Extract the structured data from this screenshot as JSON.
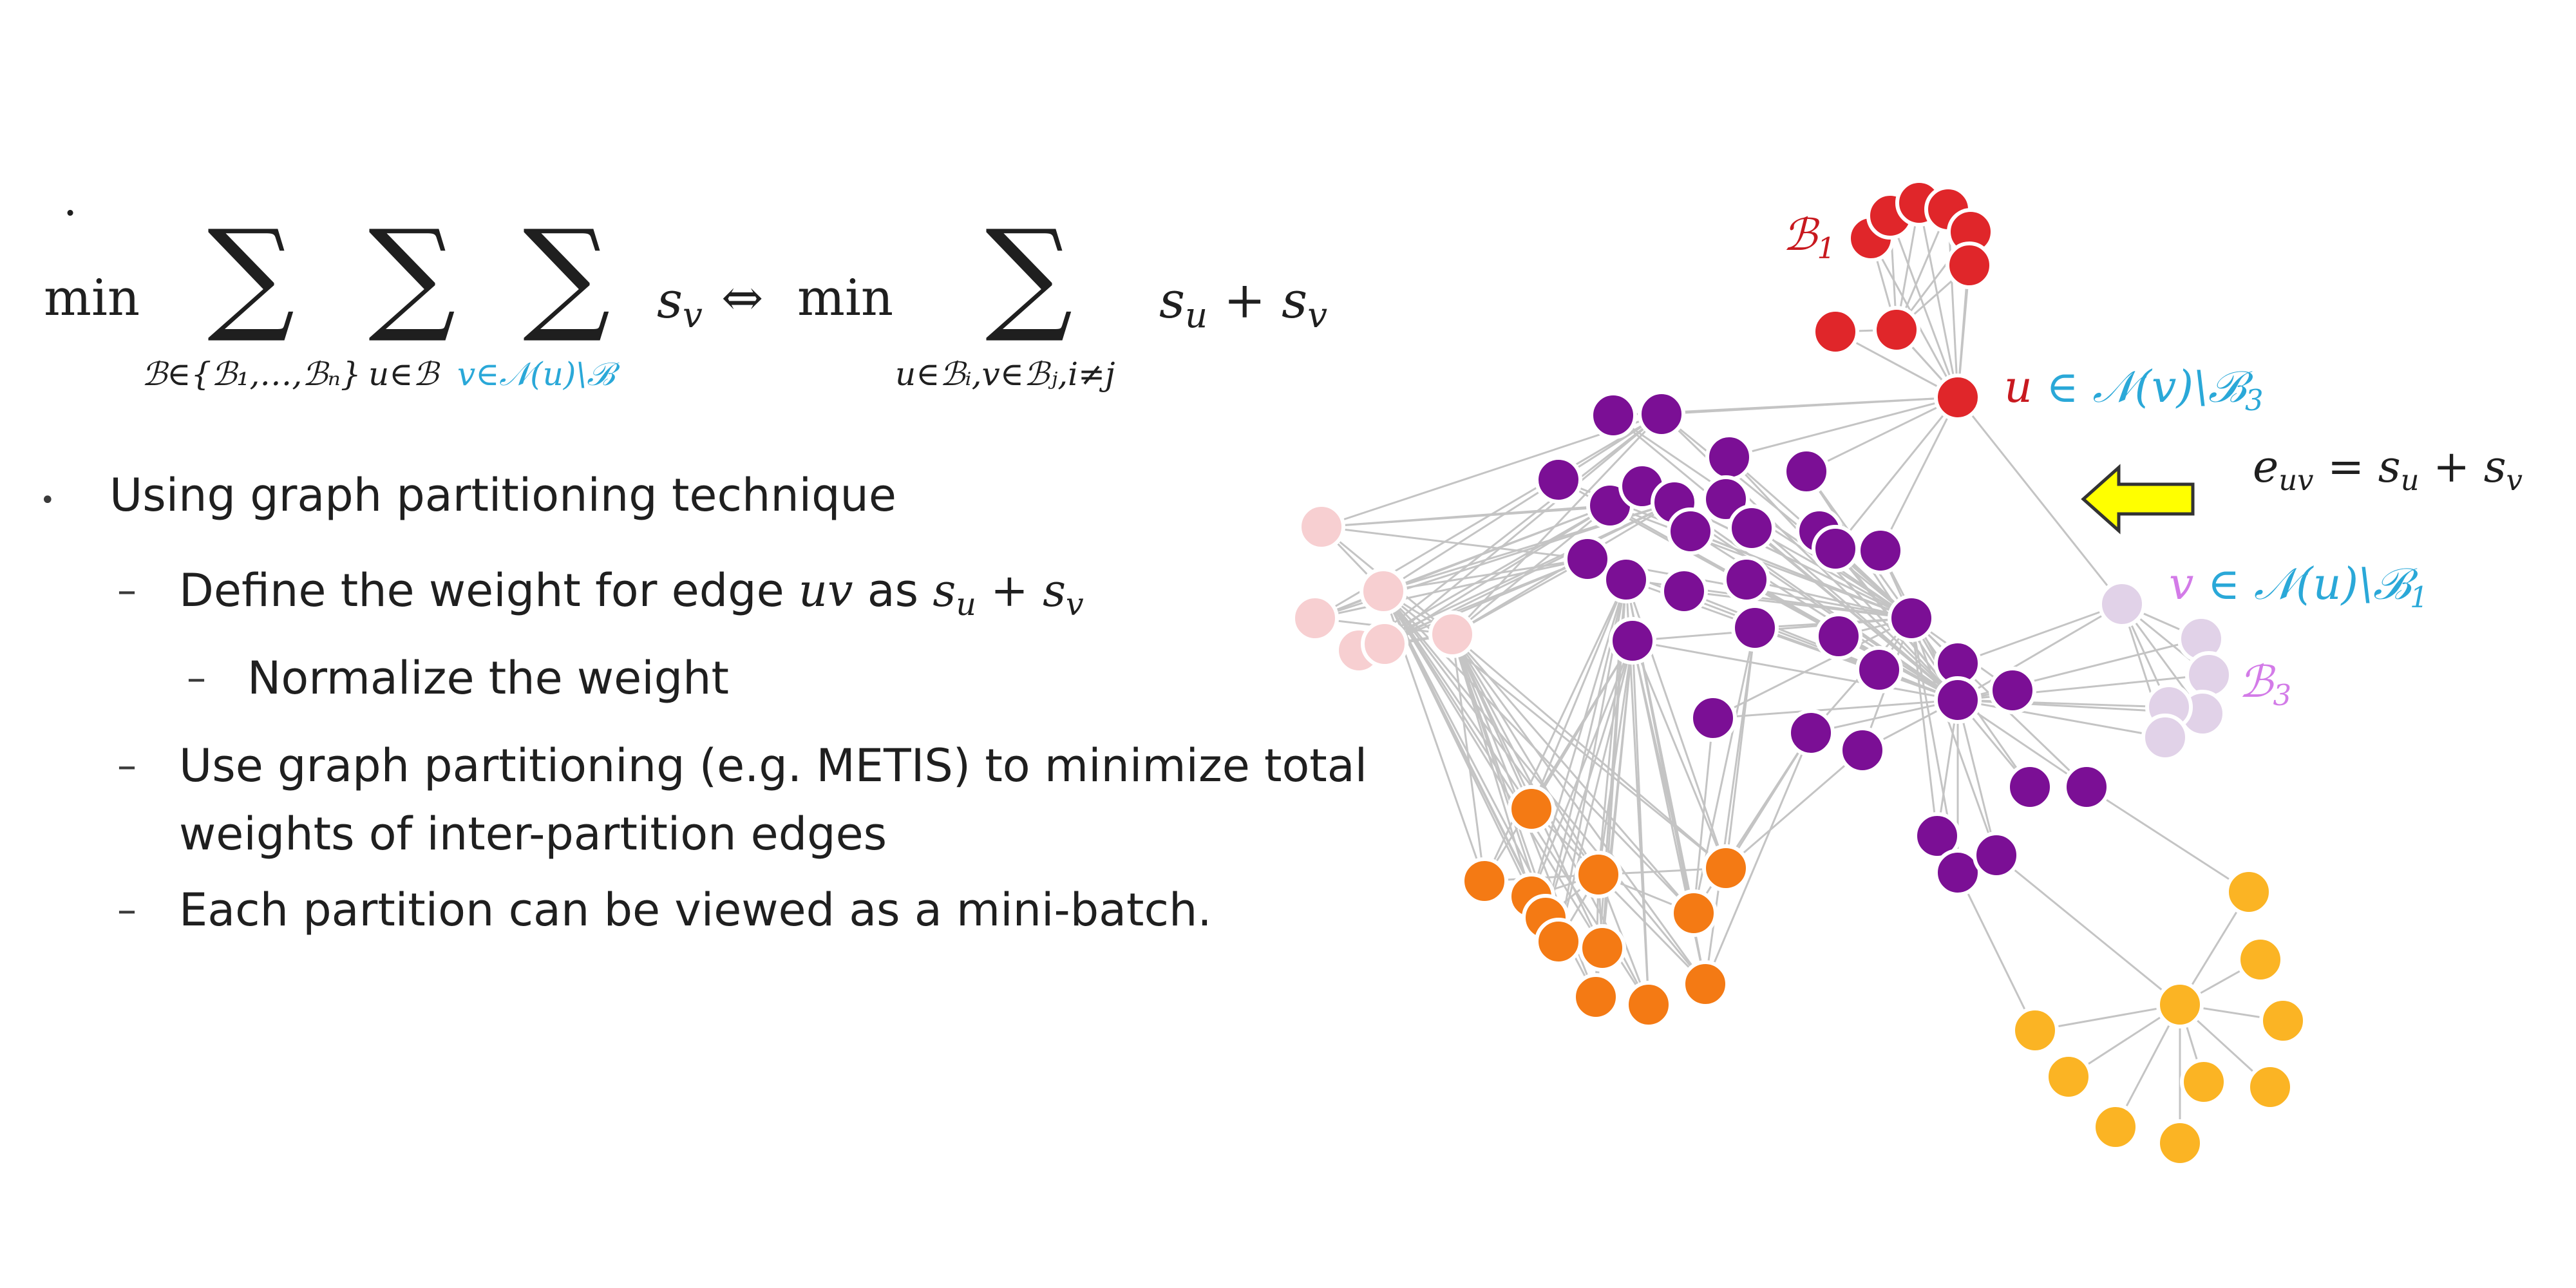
{
  "formula": {
    "bullet": "·",
    "min1": "min",
    "sum1_sub": "ℬ∈{ℬ₁,…,ℬₙ}",
    "sum2_sub": "u∈ℬ",
    "sum3_sub": "v∈𝒩(u)\\ℬ",
    "s_v": "s",
    "s_v_sub": "v",
    "iff": "⇔",
    "min2": "min",
    "sum4_sub": "u∈ℬᵢ,v∈ℬⱼ,i≠j",
    "rhs": "s",
    "rhs_sub_u": "u",
    "plus": "+",
    "rhs_sub_v": "v",
    "sigma": "∑"
  },
  "bullets": {
    "b1_marker": "•",
    "b1": "Using graph partitioning technique",
    "b2_marker": "–",
    "b2_pre": "Define the weight for edge ",
    "b2_uv": "uv",
    "b2_as": " as ",
    "b2_s": "s",
    "b2_su": "u",
    "b2_plus": " + ",
    "b2_sv": "v",
    "b3_marker": "–",
    "b3": "Normalize the weight",
    "b4_marker": "–",
    "b4_line1": "Use graph partitioning (e.g. METIS) to minimize total",
    "b4_line2": "weights of inter-partition edges",
    "b5_marker": "–",
    "b5": "Each partition can be viewed as a mini-batch."
  },
  "graph_labels": {
    "B1": "ℬ",
    "B1_sub": "1",
    "u_label_u": "u",
    "u_label_rest": " ∈ 𝒩(v)\\ℬ",
    "u_label_sub": "3",
    "edge_e": "e",
    "edge_sub": "uv",
    "edge_rest": " = s",
    "edge_su": "u",
    "edge_plus": " + s",
    "edge_sv": "v",
    "v_label_v": "v",
    "v_label_rest": " ∈ 𝒩(u)\\ℬ",
    "v_label_sub": "1",
    "B3": "ℬ",
    "B3_sub": "3"
  },
  "colors": {
    "red": "#e0262a",
    "purple": "#7b0f95",
    "pink": "#f7cfd1",
    "orange": "#f47a14",
    "yellow": "#fbb424",
    "lavender": "#e1d2e8",
    "label_red": "#c8191f",
    "label_blue": "#2aa8d8",
    "label_violet": "#d37be8",
    "arrow_yellow": "#ffff00",
    "edge_gray": "#c4c4c4"
  }
}
